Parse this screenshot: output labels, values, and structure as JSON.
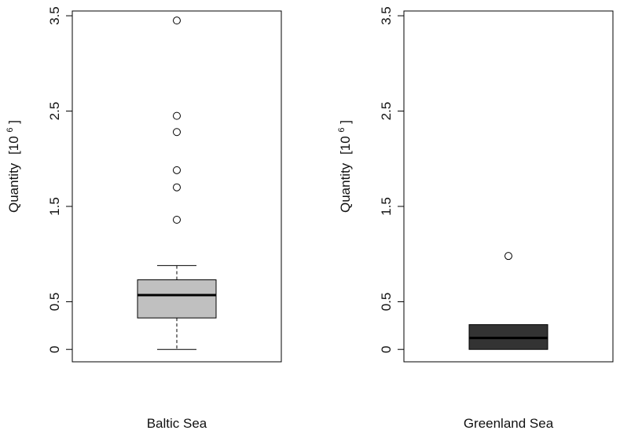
{
  "chart_data": [
    {
      "type": "boxplot",
      "category": "Baltic Sea",
      "ylabel_main": "Quantity",
      "ylabel_unit_base": "[10",
      "ylabel_unit_exp": "6",
      "ylabel_unit_close": "]",
      "ylim": [
        -0.13,
        3.55
      ],
      "yticks": [
        0,
        0.5,
        1.5,
        2.5,
        3.5
      ],
      "ytick_labels": [
        "0",
        "0.5",
        "1.5",
        "2.5",
        "3.5"
      ],
      "box": {
        "whisker_low": 0.0,
        "q1": 0.33,
        "median": 0.57,
        "q3": 0.73,
        "whisker_high": 0.88
      },
      "outliers": [
        1.36,
        1.7,
        1.88,
        2.28,
        2.45,
        3.45
      ],
      "fill": "#c0c0c0"
    },
    {
      "type": "boxplot",
      "category": "Greenland Sea",
      "ylabel_main": "Quantity",
      "ylabel_unit_base": "[10",
      "ylabel_unit_exp": "6",
      "ylabel_unit_close": "]",
      "ylim": [
        -0.13,
        3.55
      ],
      "yticks": [
        0,
        0.5,
        1.5,
        2.5,
        3.5
      ],
      "ytick_labels": [
        "0",
        "0.5",
        "1.5",
        "2.5",
        "3.5"
      ],
      "box": {
        "whisker_low": 0.0,
        "q1": 0.0,
        "median": 0.12,
        "q3": 0.26,
        "whisker_high": 0.26
      },
      "outliers": [
        0.98
      ],
      "fill": "#333333"
    }
  ]
}
